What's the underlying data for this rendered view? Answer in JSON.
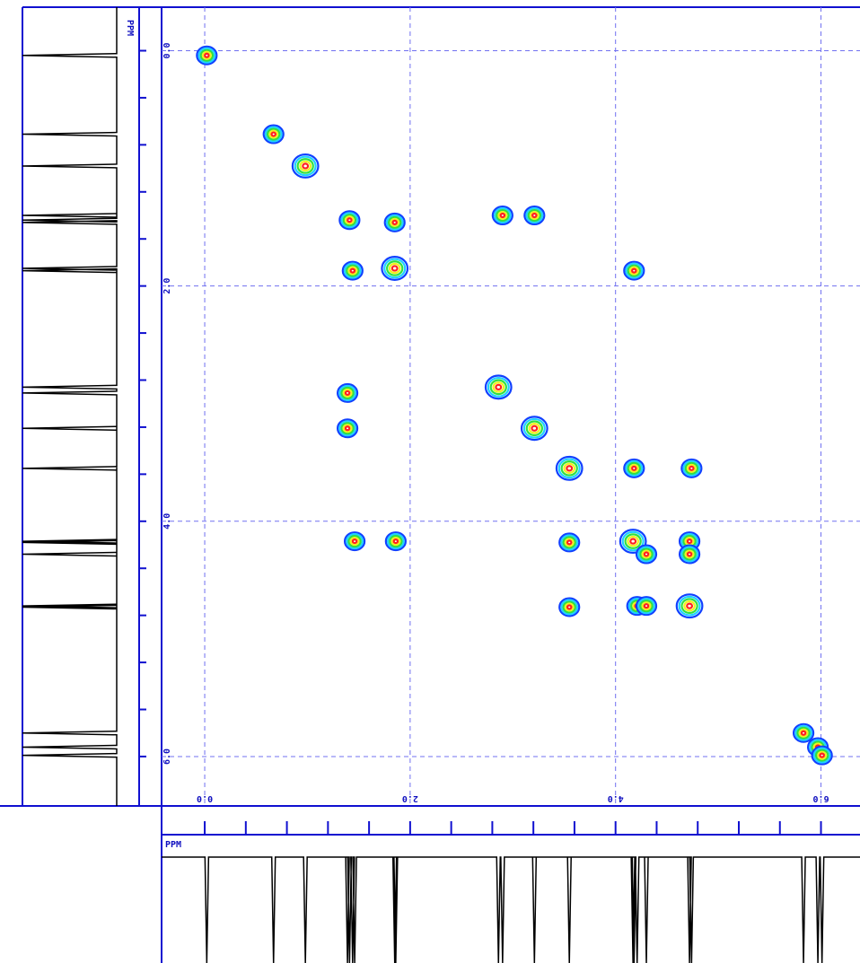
{
  "chart_data": {
    "type": "contour",
    "axis_label_x": "PPM",
    "axis_label_y": "PPM",
    "x": [
      0.02,
      0.67,
      0.98,
      1.41,
      1.85,
      2.9,
      3.21,
      4.18,
      1.44,
      1.85,
      1.39,
      2.86,
      1.39,
      3.21,
      3.55,
      4.18,
      4.74,
      1.46,
      1.86,
      3.55,
      4.17,
      4.3,
      4.72,
      4.72,
      3.55,
      4.21,
      4.3,
      4.72,
      5.83,
      5.97,
      6.01
    ],
    "values": [
      0.04,
      0.71,
      0.98,
      1.44,
      1.46,
      1.4,
      1.4,
      1.87,
      1.87,
      1.85,
      2.91,
      2.86,
      3.21,
      3.21,
      3.55,
      3.55,
      3.55,
      4.17,
      4.17,
      4.18,
      4.17,
      4.28,
      4.17,
      4.28,
      4.73,
      4.72,
      4.72,
      4.72,
      5.8,
      5.92,
      5.99
    ],
    "colors": [
      "#1040ff",
      "#20d0ff",
      "#30e040",
      "#f0f020",
      "#ff2020"
    ],
    "xlim": [
      -0.42,
      6.38
    ],
    "ylim": [
      -0.37,
      6.42
    ],
    "xticks": [
      {
        "value": 0,
        "label": "0.0"
      },
      {
        "value": 2,
        "label": "2.0"
      },
      {
        "value": 4,
        "label": "4.0"
      },
      {
        "value": 6,
        "label": "6.0"
      }
    ],
    "yticks": [
      {
        "value": 0,
        "label": "0.0"
      },
      {
        "value": 2,
        "label": "2.0"
      },
      {
        "value": 4,
        "label": "4.0"
      },
      {
        "value": 6,
        "label": "6.0"
      }
    ],
    "xminor": [
      0,
      0.4,
      0.8,
      1.2,
      1.6,
      2,
      2.4,
      2.8,
      3.2,
      3.6,
      4,
      4.4,
      4.8,
      5.2,
      5.6,
      6
    ],
    "yminor": [
      0,
      0.4,
      0.8,
      1.2,
      1.6,
      2,
      2.4,
      2.8,
      3.2,
      3.6,
      4,
      4.4,
      4.8,
      5.2,
      5.6,
      6
    ],
    "grid": true
  }
}
